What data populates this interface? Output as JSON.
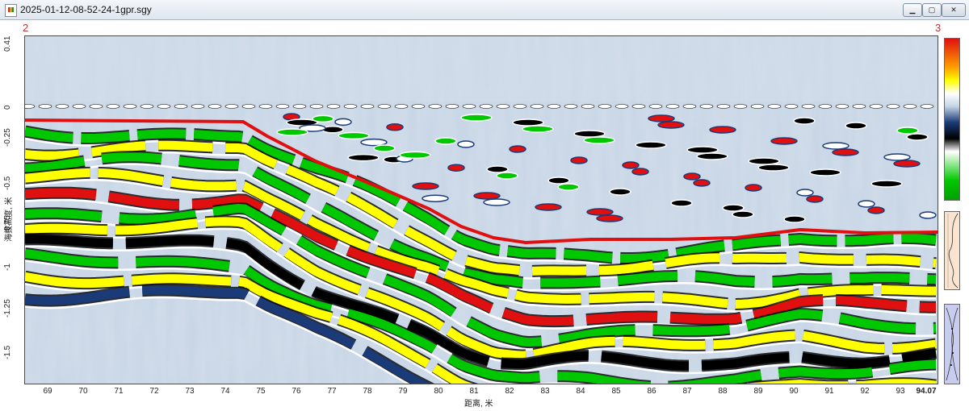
{
  "window": {
    "title": "2025-01-12-08-52-24-1gpr.sgy"
  },
  "markers": {
    "left": "2",
    "right": "3"
  },
  "axes": {
    "y_title": "海拔高度, 米",
    "y_ticks": [
      "0.41",
      "0",
      "-0.25",
      "-0.5",
      "-0.75",
      "-1",
      "-1.25",
      "-1.5"
    ],
    "x_title": "距离, 米",
    "x_ticks": [
      "69",
      "70",
      "71",
      "72",
      "73",
      "74",
      "75",
      "76",
      "77",
      "78",
      "79",
      "80",
      "81",
      "82",
      "83",
      "84",
      "85",
      "86",
      "87",
      "88",
      "89",
      "90",
      "91",
      "92",
      "93"
    ],
    "x_end": "94.07"
  },
  "interface_line_color": "#e01010",
  "colorbar": {
    "colors": [
      "#e01010",
      "#ffa000",
      "#ffff00",
      "#ffffff",
      "#1a3a78",
      "#000000",
      "#ffffff",
      "#00c800"
    ]
  }
}
